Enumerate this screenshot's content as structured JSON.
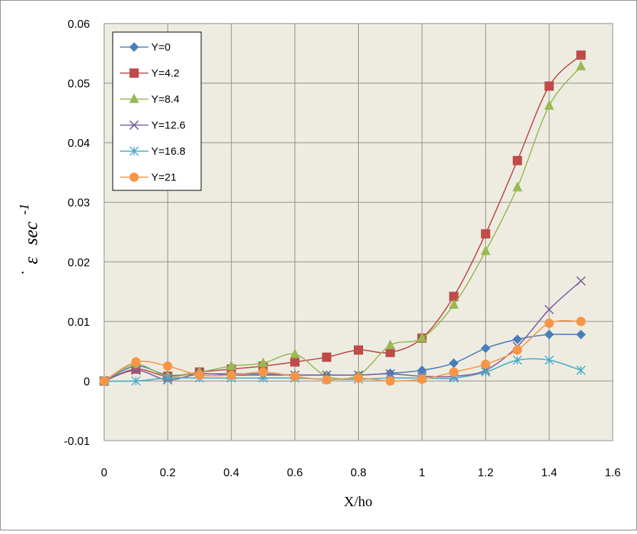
{
  "chart_data": {
    "type": "line",
    "title": "",
    "xlabel": "X/ho",
    "ylabel": "ε̇ sec^-1",
    "ylabel_parts": {
      "symbol": "ε",
      "unit": "sec",
      "exponent": "-1"
    },
    "xlim": [
      0,
      1.6
    ],
    "ylim": [
      -0.01,
      0.06
    ],
    "x_ticks": [
      0,
      0.2,
      0.4,
      0.6,
      0.8,
      1,
      1.2,
      1.4,
      1.6
    ],
    "x_tick_labels": [
      "0",
      "0.2",
      "0.4",
      "0.6",
      "0.8",
      "1",
      "1.2",
      "1.4",
      "1.6"
    ],
    "y_ticks": [
      -0.01,
      0,
      0.01,
      0.02,
      0.03,
      0.04,
      0.05,
      0.06
    ],
    "y_tick_labels": [
      "-0.01",
      "0",
      "0.01",
      "0.02",
      "0.03",
      "0.04",
      "0.05",
      "0.06"
    ],
    "grid": true,
    "plot_background": "#eeece1",
    "legend_position": "top-left",
    "x": [
      0,
      0.1,
      0.2,
      0.3,
      0.4,
      0.5,
      0.6,
      0.7,
      0.8,
      0.9,
      1.0,
      1.1,
      1.2,
      1.3,
      1.4,
      1.5
    ],
    "series": [
      {
        "name": "Y=0",
        "color": "#4a7ebb",
        "marker": "diamond",
        "values": [
          0,
          0.0025,
          0.001,
          0.0012,
          0.0012,
          0.0012,
          0.001,
          0.001,
          0.001,
          0.0013,
          0.0018,
          0.003,
          0.0055,
          0.007,
          0.0078,
          0.0078
        ]
      },
      {
        "name": "Y=4.2",
        "color": "#be4b48",
        "marker": "square",
        "values": [
          0,
          0.002,
          0.0008,
          0.0015,
          0.002,
          0.0025,
          0.0032,
          0.004,
          0.0052,
          0.0048,
          0.0072,
          0.0142,
          0.0247,
          0.037,
          0.0495,
          0.0547
        ]
      },
      {
        "name": "Y=8.4",
        "color": "#98b954",
        "marker": "triangle",
        "values": [
          0,
          0.0028,
          0.0008,
          0.0015,
          0.0025,
          0.003,
          0.0045,
          0.0008,
          0.001,
          0.006,
          0.0072,
          0.0128,
          0.0218,
          0.0325,
          0.0462,
          0.0528
        ]
      },
      {
        "name": "Y=12.6",
        "color": "#7d60a0",
        "marker": "x",
        "values": [
          0,
          0.0018,
          0.0002,
          0.0012,
          0.001,
          0.001,
          0.001,
          0.001,
          0.001,
          0.0012,
          0.0008,
          0.0008,
          0.0018,
          0.0058,
          0.012,
          0.0168
        ]
      },
      {
        "name": "Y=16.8",
        "color": "#46aac5",
        "marker": "star",
        "values": [
          0,
          0,
          0.0005,
          0.0005,
          0.0005,
          0.0005,
          0.0005,
          0.0003,
          0.0003,
          0.0005,
          0.0005,
          0.0005,
          0.0015,
          0.0035,
          0.0035,
          0.0018
        ]
      },
      {
        "name": "Y=21",
        "color": "#f79646",
        "marker": "circle",
        "values": [
          0,
          0.0032,
          0.0025,
          0.001,
          0.001,
          0.0015,
          0.0008,
          0.0002,
          0.0005,
          0,
          0.0003,
          0.0015,
          0.0028,
          0.0052,
          0.0097,
          0.01
        ]
      }
    ]
  }
}
